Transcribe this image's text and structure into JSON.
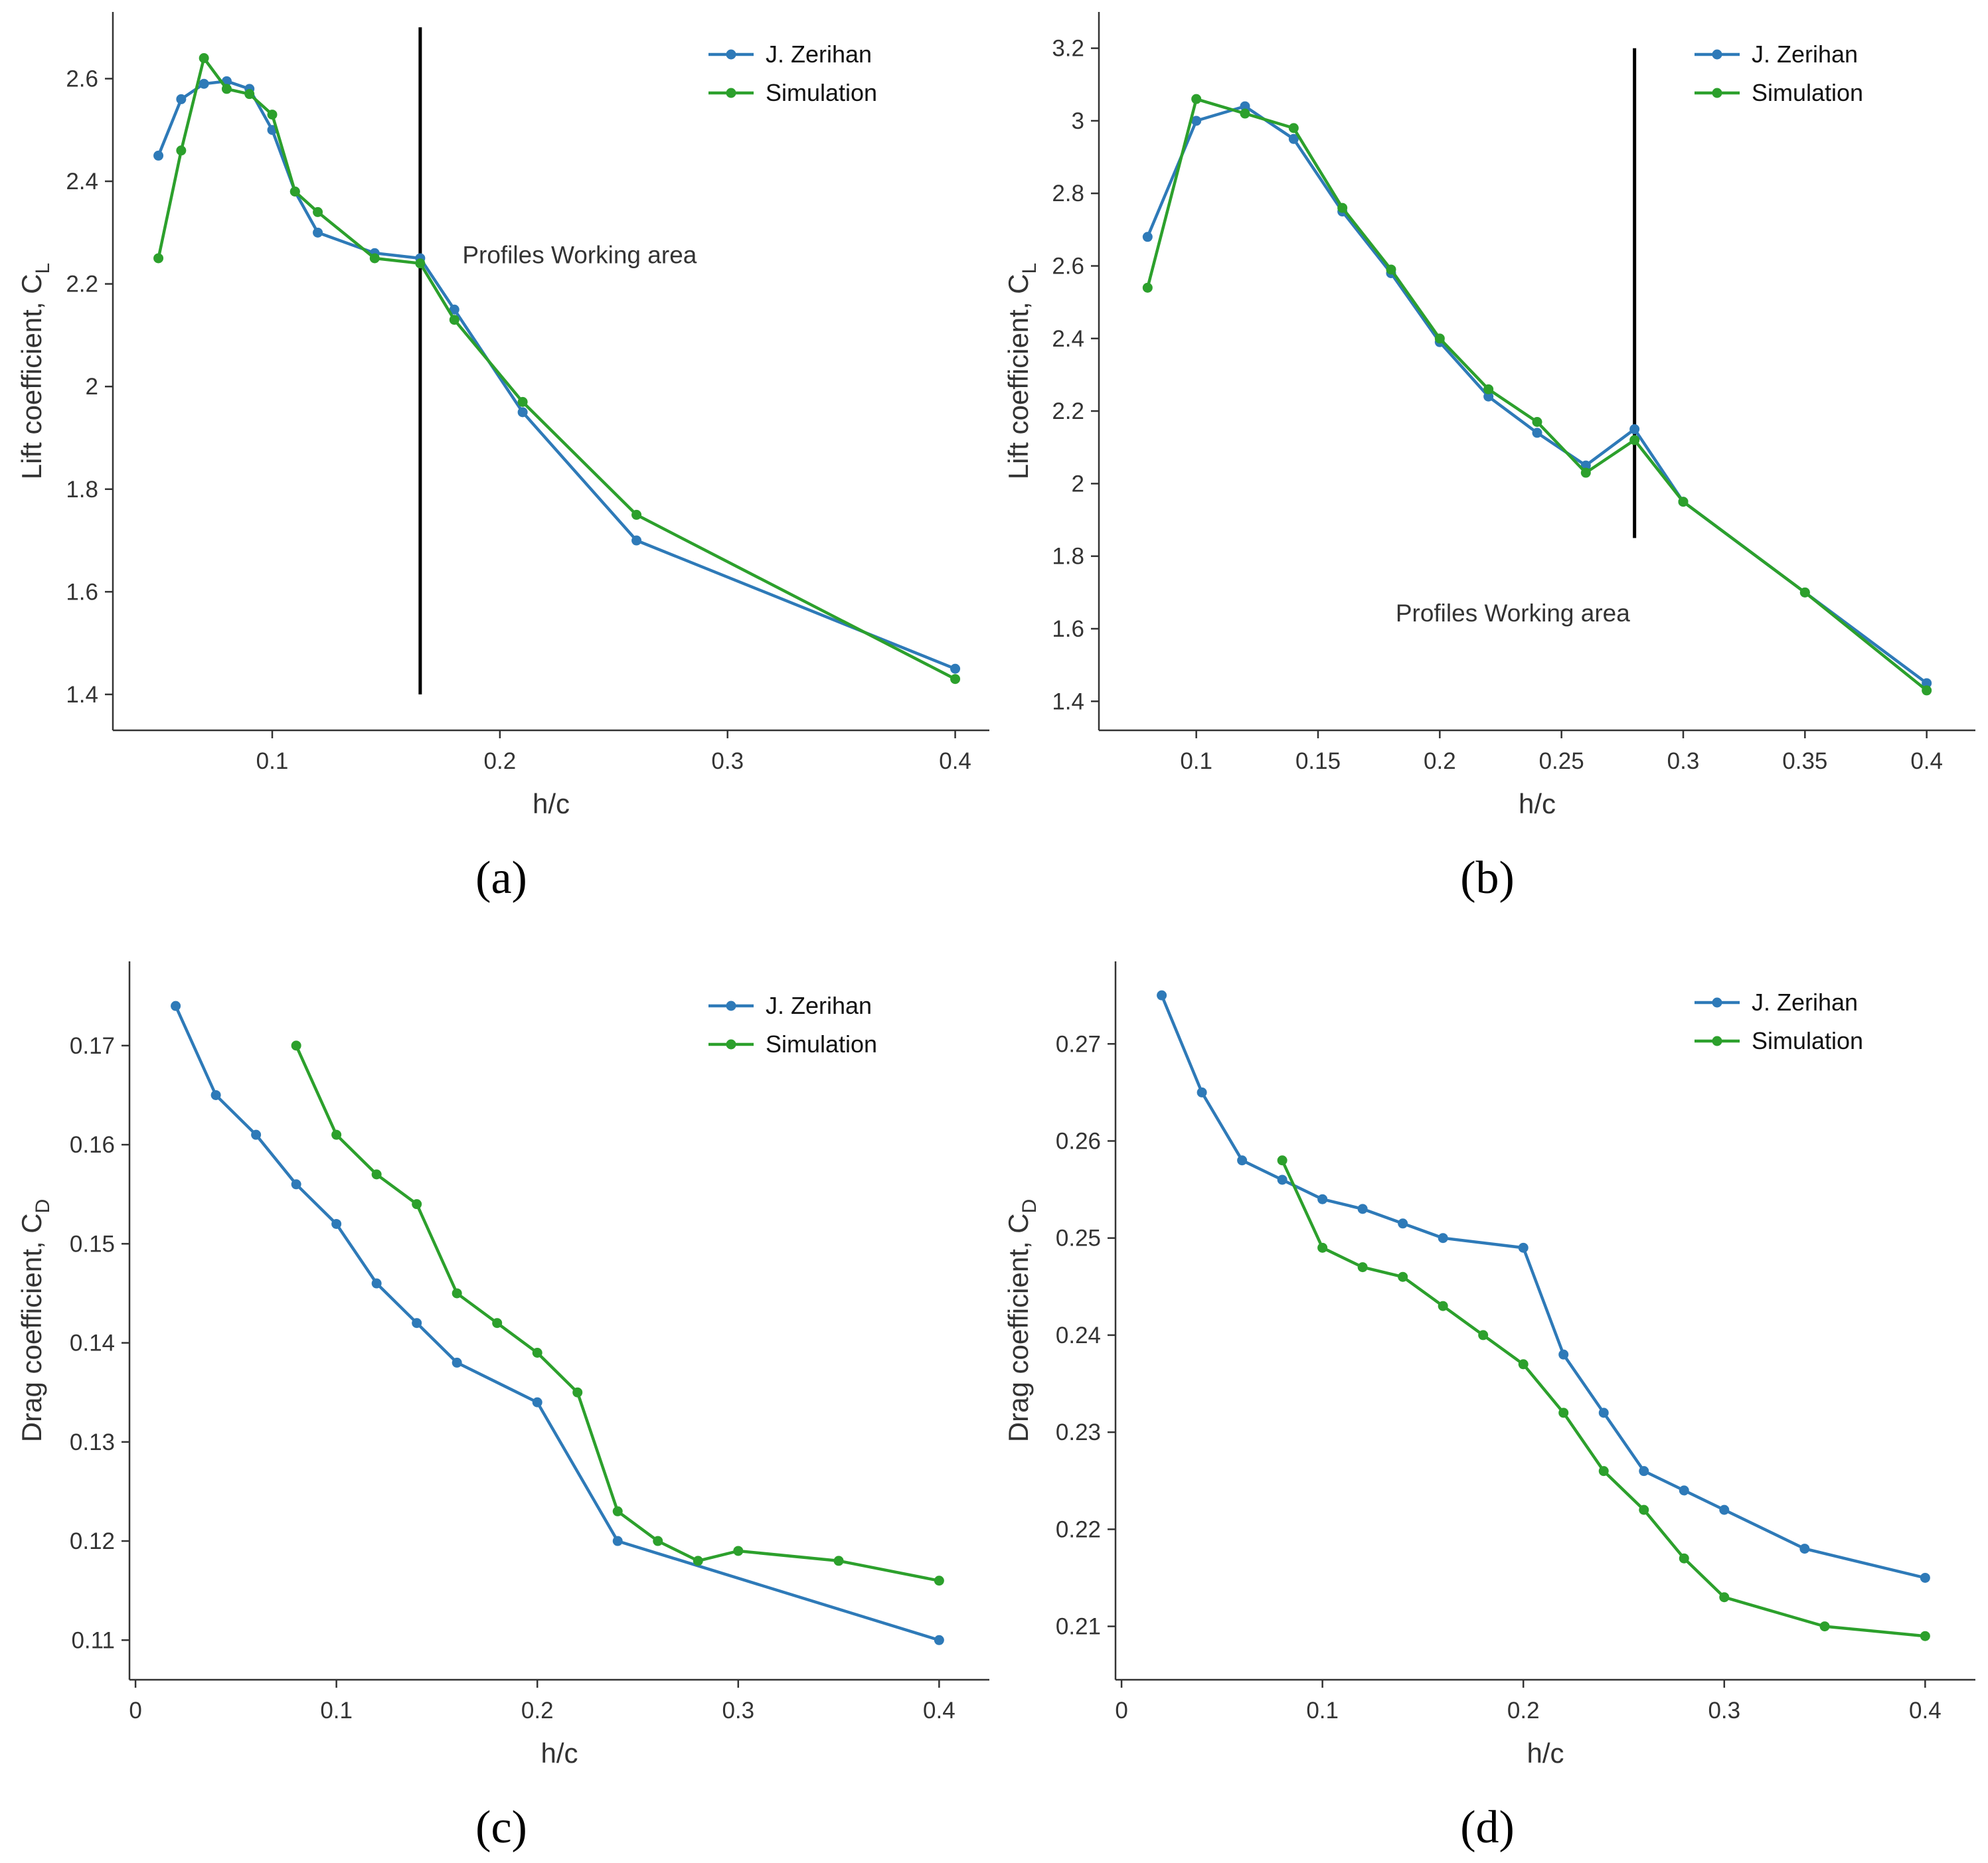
{
  "colors": {
    "zerihan": "#2e7ab8",
    "simulation": "#2ca02c",
    "marker_line": "#000000"
  },
  "chart_data": [
    {
      "id": "a",
      "type": "line",
      "panel_label": "(a)",
      "xlabel": "h/c",
      "ylabel_main": "Lift coefficient, C",
      "ylabel_sub": "L",
      "xlim": [
        0.03,
        0.415
      ],
      "ylim": [
        1.33,
        2.73
      ],
      "xticks": [
        0.1,
        0.2,
        0.3,
        0.4
      ],
      "xtick_labels": [
        "0.1",
        "0.2",
        "0.3",
        "0.4"
      ],
      "yticks": [
        1.4,
        1.6,
        1.8,
        2.0,
        2.2,
        2.4,
        2.6
      ],
      "ytick_labels": [
        "1.4",
        "1.6",
        "1.8",
        "2",
        "2.2",
        "2.4",
        "2.6"
      ],
      "legend_position": "top-right",
      "series": [
        {
          "name": "J. Zerihan",
          "color_key": "zerihan",
          "x": [
            0.05,
            0.06,
            0.07,
            0.08,
            0.09,
            0.1,
            0.11,
            0.12,
            0.145,
            0.165,
            0.18,
            0.21,
            0.26,
            0.4
          ],
          "y": [
            2.45,
            2.56,
            2.59,
            2.595,
            2.58,
            2.5,
            2.38,
            2.3,
            2.26,
            2.25,
            2.15,
            1.95,
            1.7,
            1.45
          ]
        },
        {
          "name": "Simulation",
          "color_key": "simulation",
          "x": [
            0.05,
            0.06,
            0.07,
            0.08,
            0.09,
            0.1,
            0.11,
            0.12,
            0.145,
            0.165,
            0.18,
            0.21,
            0.26,
            0.4
          ],
          "y": [
            2.25,
            2.46,
            2.64,
            2.58,
            2.57,
            2.53,
            2.38,
            2.34,
            2.25,
            2.24,
            2.13,
            1.97,
            1.75,
            1.43
          ]
        }
      ],
      "vline": {
        "x": 0.165,
        "y_from": 1.4,
        "y_to": 2.7
      },
      "annotation": {
        "text": "Profiles Working area",
        "x": 0.235,
        "y": 2.24
      }
    },
    {
      "id": "b",
      "type": "line",
      "panel_label": "(b)",
      "xlabel": "h/c",
      "ylabel_main": "Lift coefficient, C",
      "ylabel_sub": "L",
      "xlim": [
        0.06,
        0.42
      ],
      "ylim": [
        1.32,
        3.3
      ],
      "xticks": [
        0.1,
        0.15,
        0.2,
        0.25,
        0.3,
        0.35,
        0.4
      ],
      "xtick_labels": [
        "0.1",
        "0.15",
        "0.2",
        "0.25",
        "0.3",
        "0.35",
        "0.4"
      ],
      "yticks": [
        1.4,
        1.6,
        1.8,
        2.0,
        2.2,
        2.4,
        2.6,
        2.8,
        3.0,
        3.2
      ],
      "ytick_labels": [
        "1.4",
        "1.6",
        "1.8",
        "2",
        "2.2",
        "2.4",
        "2.6",
        "2.8",
        "3",
        "3.2"
      ],
      "legend_position": "top-right",
      "series": [
        {
          "name": "J. Zerihan",
          "color_key": "zerihan",
          "x": [
            0.08,
            0.1,
            0.12,
            0.14,
            0.16,
            0.18,
            0.2,
            0.22,
            0.24,
            0.26,
            0.28,
            0.3,
            0.35,
            0.4
          ],
          "y": [
            2.68,
            3.0,
            3.04,
            2.95,
            2.75,
            2.58,
            2.39,
            2.24,
            2.14,
            2.05,
            2.15,
            1.95,
            1.7,
            1.45
          ]
        },
        {
          "name": "Simulation",
          "color_key": "simulation",
          "x": [
            0.08,
            0.1,
            0.12,
            0.14,
            0.16,
            0.18,
            0.2,
            0.22,
            0.24,
            0.26,
            0.28,
            0.3,
            0.35,
            0.4
          ],
          "y": [
            2.54,
            3.06,
            3.02,
            2.98,
            2.76,
            2.59,
            2.4,
            2.26,
            2.17,
            2.03,
            2.12,
            1.95,
            1.7,
            1.43
          ]
        }
      ],
      "vline": {
        "x": 0.28,
        "y_from": 1.85,
        "y_to": 3.2
      },
      "annotation": {
        "text": "Profiles Working area",
        "x": 0.23,
        "y": 1.62
      }
    },
    {
      "id": "c",
      "type": "line",
      "panel_label": "(c)",
      "xlabel": "h/c",
      "ylabel_main": "Drag coefficient, C",
      "ylabel_sub": "D",
      "xlim": [
        -0.003,
        0.425
      ],
      "ylim": [
        0.106,
        0.1785
      ],
      "xticks": [
        0,
        0.1,
        0.2,
        0.3,
        0.4
      ],
      "xtick_labels": [
        "0",
        "0.1",
        "0.2",
        "0.3",
        "0.4"
      ],
      "yticks": [
        0.11,
        0.12,
        0.13,
        0.14,
        0.15,
        0.16,
        0.17
      ],
      "ytick_labels": [
        "0.11",
        "0.12",
        "0.13",
        "0.14",
        "0.15",
        "0.16",
        "0.17"
      ],
      "legend_position": "top-right",
      "series": [
        {
          "name": "J. Zerihan",
          "color_key": "zerihan",
          "x": [
            0.02,
            0.04,
            0.06,
            0.08,
            0.1,
            0.12,
            0.14,
            0.16,
            0.2,
            0.24,
            0.4
          ],
          "y": [
            0.174,
            0.165,
            0.161,
            0.156,
            0.152,
            0.146,
            0.142,
            0.138,
            0.134,
            0.12,
            0.11
          ]
        },
        {
          "name": "Simulation",
          "color_key": "simulation",
          "x": [
            0.08,
            0.1,
            0.12,
            0.14,
            0.16,
            0.18,
            0.2,
            0.22,
            0.24,
            0.26,
            0.28,
            0.3,
            0.35,
            0.4
          ],
          "y": [
            0.17,
            0.161,
            0.157,
            0.154,
            0.145,
            0.142,
            0.139,
            0.135,
            0.123,
            0.12,
            0.118,
            0.119,
            0.118,
            0.116
          ]
        }
      ]
    },
    {
      "id": "d",
      "type": "line",
      "panel_label": "(d)",
      "xlabel": "h/c",
      "ylabel_main": "Drag coefficient, C",
      "ylabel_sub": "D",
      "xlim": [
        -0.003,
        0.425
      ],
      "ylim": [
        0.2045,
        0.2785
      ],
      "xticks": [
        0,
        0.1,
        0.2,
        0.3,
        0.4
      ],
      "xtick_labels": [
        "0",
        "0.1",
        "0.2",
        "0.3",
        "0.4"
      ],
      "yticks": [
        0.21,
        0.22,
        0.23,
        0.24,
        0.25,
        0.26,
        0.27
      ],
      "ytick_labels": [
        "0.21",
        "0.22",
        "0.23",
        "0.24",
        "0.25",
        "0.26",
        "0.27"
      ],
      "legend_position": "top-right",
      "series": [
        {
          "name": "J. Zerihan",
          "color_key": "zerihan",
          "x": [
            0.02,
            0.04,
            0.06,
            0.08,
            0.1,
            0.12,
            0.14,
            0.16,
            0.2,
            0.22,
            0.24,
            0.26,
            0.28,
            0.3,
            0.34,
            0.4
          ],
          "y": [
            0.275,
            0.265,
            0.258,
            0.256,
            0.254,
            0.253,
            0.2515,
            0.25,
            0.249,
            0.238,
            0.232,
            0.226,
            0.224,
            0.222,
            0.218,
            0.215
          ]
        },
        {
          "name": "Simulation",
          "color_key": "simulation",
          "x": [
            0.08,
            0.1,
            0.12,
            0.14,
            0.16,
            0.18,
            0.2,
            0.22,
            0.24,
            0.26,
            0.28,
            0.3,
            0.35,
            0.4
          ],
          "y": [
            0.258,
            0.249,
            0.247,
            0.246,
            0.243,
            0.24,
            0.237,
            0.232,
            0.226,
            0.222,
            0.217,
            0.213,
            0.21,
            0.209
          ]
        }
      ]
    }
  ]
}
